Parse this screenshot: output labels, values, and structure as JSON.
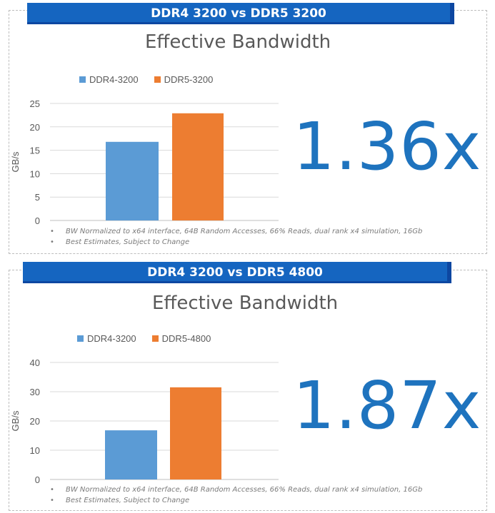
{
  "colors": {
    "banner": "#1565c0",
    "ddr4": "#5b9bd5",
    "ddr5": "#ed7d31",
    "bignum": "#1e73be"
  },
  "footnotes": [
    "BW Normalized to x64 interface, 64B Random Accesses, 66% Reads, dual rank x4 simulation, 16Gb",
    "Best Estimates, Subject to Change"
  ],
  "panels": [
    {
      "banner": "DDR4 3200 vs DDR5 3200",
      "big_number": "1.36x",
      "footnotes": [
        "BW Normalized to x64 interface, 64B Random Accesses, 66% Reads, dual rank x4 simulation, 16Gb",
        "Best Estimates, Subject to Change"
      ]
    },
    {
      "banner": "DDR4 3200 vs DDR5 4800",
      "big_number": "1.87x",
      "footnotes": [
        "BW Normalized to x64 interface, 64B Random Accesses, 66% Reads, dual rank x4 simulation, 16Gb",
        "Best Estimates, Subject to Change"
      ]
    }
  ],
  "chart_data": [
    {
      "type": "bar",
      "title": "Effective Bandwidth",
      "ylabel": "GB/s",
      "ylim": [
        0,
        25
      ],
      "yticks": [
        0,
        5,
        10,
        15,
        20,
        25
      ],
      "legend": "top-left",
      "grid": true,
      "series": [
        {
          "name": "DDR4-3200",
          "values": [
            16.8
          ]
        },
        {
          "name": "DDR5-3200",
          "values": [
            22.9
          ]
        }
      ]
    },
    {
      "type": "bar",
      "title": "Effective Bandwidth",
      "ylabel": "GB/s",
      "ylim": [
        0,
        40
      ],
      "yticks": [
        0,
        10,
        20,
        30,
        40
      ],
      "legend": "top-left",
      "grid": true,
      "series": [
        {
          "name": "DDR4-3200",
          "values": [
            16.8
          ]
        },
        {
          "name": "DDR5-4800",
          "values": [
            31.5
          ]
        }
      ]
    }
  ]
}
